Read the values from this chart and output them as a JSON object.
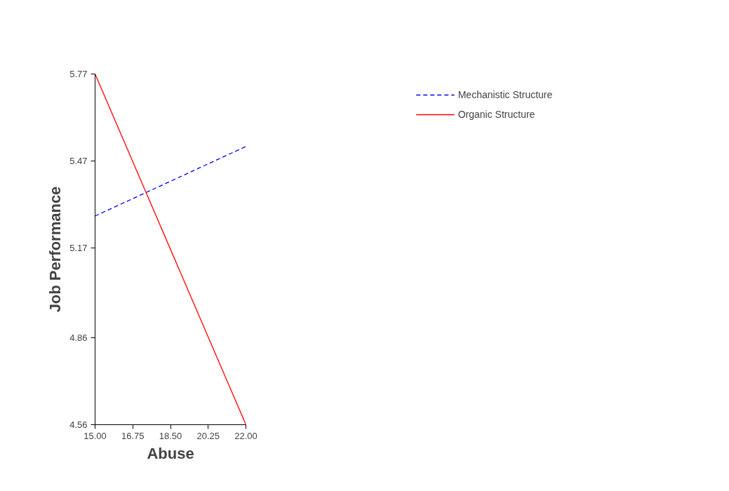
{
  "chart_data": {
    "type": "line",
    "xlabel": "Abuse",
    "ylabel": "Job Performance",
    "x": [
      15.0,
      22.0
    ],
    "series": [
      {
        "name": "Mechanistic Structure",
        "color": "#0000ff",
        "values": [
          5.28,
          5.52
        ],
        "line_style": "dashed"
      },
      {
        "name": "Organic Structure",
        "color": "#ff0000",
        "values": [
          5.77,
          4.56
        ],
        "line_style": "solid"
      }
    ],
    "xlim": [
      15.0,
      22.0
    ],
    "ylim": [
      4.56,
      5.77
    ],
    "xticks": [
      {
        "value": 15.0,
        "label": "15.00"
      },
      {
        "value": 16.75,
        "label": "16.75"
      },
      {
        "value": 18.5,
        "label": "18.50"
      },
      {
        "value": 20.25,
        "label": "20.25"
      },
      {
        "value": 22.0,
        "label": "22.00"
      }
    ],
    "yticks": [
      4.56,
      4.86,
      5.17,
      5.47,
      5.77
    ],
    "grid": false,
    "legend": "top right",
    "marker": "none"
  }
}
